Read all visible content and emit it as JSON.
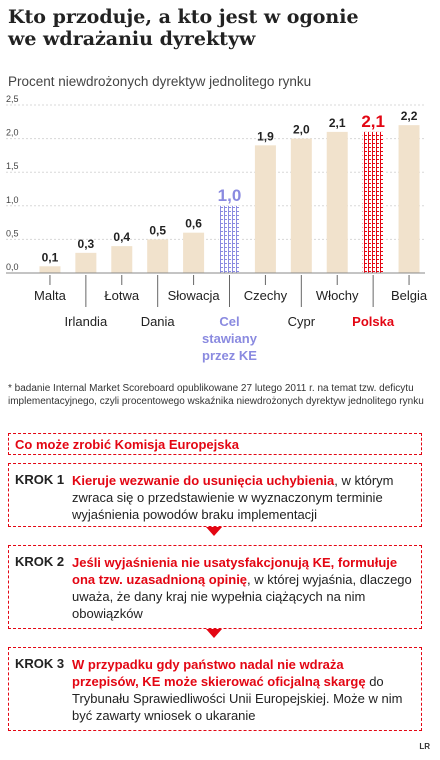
{
  "title_line1": "Kto przoduje, a kto jest w ogonie",
  "title_line2": "we wdrażaniu dyrektyw",
  "subtitle": "Procent niewdrożonych dyrektyw jednolitego rynku",
  "footnote": "* badanie Internal Market Scoreboard opublikowane 27 lutego 2011 r. na temat tzw. deficytu implementacyjnego, czyli procentowego wskaźnika niewdrożonych dyrektyw jednolitego rynku",
  "colors": {
    "bar": "#f1e2cc",
    "target": "#8a8ae0",
    "poland": "#e30613",
    "accent": "#e30613"
  },
  "chart_data": {
    "type": "bar",
    "categories": [
      "Malta",
      "Irlandia",
      "Łotwa",
      "Dania",
      "Słowacja",
      "Cel stawiany przez KE",
      "Czechy",
      "Cypr",
      "Włochy",
      "Polska",
      "Belgia"
    ],
    "values": [
      0.1,
      0.3,
      0.4,
      0.5,
      0.6,
      1.0,
      1.9,
      2.0,
      2.1,
      2.1,
      2.2
    ],
    "value_labels": [
      "0,1",
      "0,3",
      "0,4",
      "0,5",
      "0,6",
      "1,0",
      "1,9",
      "2,0",
      "2,1",
      "2,1",
      "2,2"
    ],
    "category_labels": [
      "Malta",
      "Irlandia",
      "Łotwa",
      "Dania",
      "Słowacja",
      "Cel stawiany przez KE",
      "Czechy",
      "Cypr",
      "Włochy",
      "Polska",
      "Belgia"
    ],
    "yticks": [
      "0,0",
      "0,5",
      "1,0",
      "1,5",
      "2,0",
      "2,5"
    ],
    "ylim": [
      0,
      2.5
    ],
    "grid": true,
    "highlight": {
      "target_index": 5,
      "poland_index": 9
    }
  },
  "steps_header": "Co może zrobić Komisja Europejska",
  "steps": [
    {
      "label": "KROK 1",
      "bold": "Kieruje wezwanie do usunięcia uchybienia",
      "text": ", w którym zwraca się o przedstawienie w wyznaczonym terminie wyjaśnienia powodów braku implementacji"
    },
    {
      "label": "KROK 2",
      "bold": "Jeśli wyjaśnienia nie usatysfakcjonują KE, formułuje ona tzw. uzasadnioną opinię",
      "text": ", w której wyjaśnia, dlaczego uważa, że dany kraj nie wypełnia ciążących na nim obowiązków"
    },
    {
      "label": "KROK 3",
      "bold": "W przypadku gdy państwo nadal nie wdraża przepisów, KE może skierować oficjalną skargę",
      "text": " do Trybunału Sprawiedliwości Unii Europejskiej. Może w nim być zawarty wniosek o ukaranie"
    }
  ],
  "credit": "LR"
}
